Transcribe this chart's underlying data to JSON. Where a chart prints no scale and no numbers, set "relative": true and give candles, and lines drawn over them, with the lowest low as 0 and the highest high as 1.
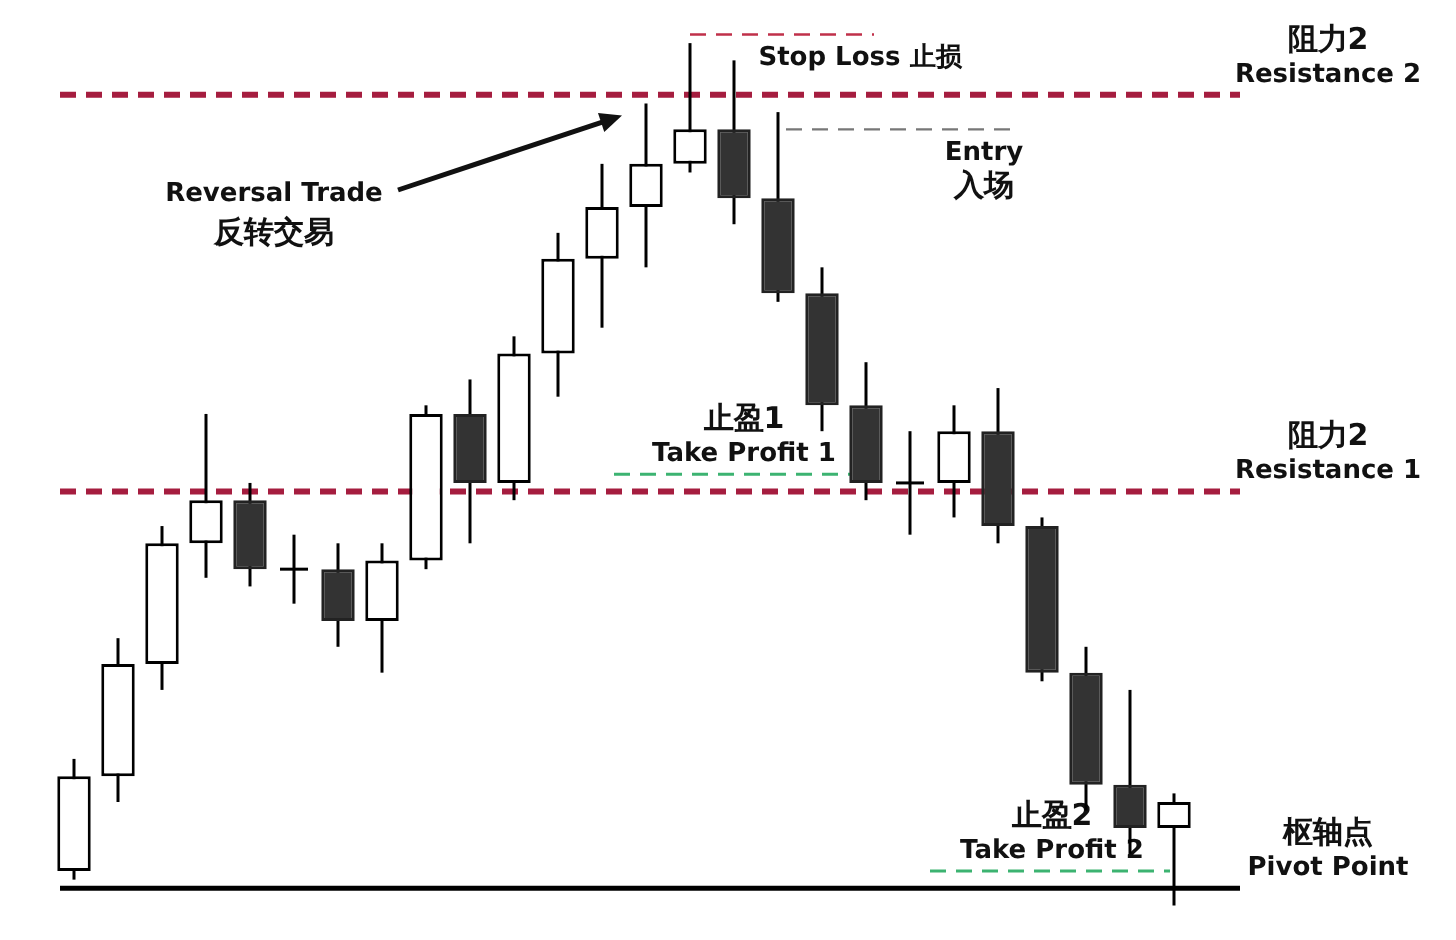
{
  "chart_data": {
    "type": "candlestick",
    "relative": true,
    "legend": false,
    "categories": [
      null,
      null,
      null,
      null,
      null,
      null,
      null,
      null,
      null,
      null,
      null,
      null,
      null,
      null,
      null,
      null,
      null,
      null,
      null,
      null,
      null,
      null,
      null,
      null,
      null,
      null
    ],
    "ohlc": [
      [
        0.04,
        0.17,
        0.03,
        0.15
      ],
      [
        0.15,
        0.31,
        0.12,
        0.28
      ],
      [
        0.28,
        0.44,
        0.25,
        0.42
      ],
      [
        0.42,
        0.57,
        0.38,
        0.47
      ],
      [
        0.47,
        0.49,
        0.37,
        0.39
      ],
      [
        0.39,
        0.43,
        0.35,
        0.39
      ],
      [
        0.39,
        0.42,
        0.3,
        0.33
      ],
      [
        0.33,
        0.42,
        0.27,
        0.4
      ],
      [
        0.4,
        0.58,
        0.39,
        0.57
      ],
      [
        0.57,
        0.61,
        0.42,
        0.49
      ],
      [
        0.49,
        0.66,
        0.47,
        0.64
      ],
      [
        0.64,
        0.78,
        0.59,
        0.75
      ],
      [
        0.75,
        0.86,
        0.67,
        0.81
      ],
      [
        0.81,
        0.93,
        0.74,
        0.86
      ],
      [
        0.86,
        1.0,
        0.85,
        0.9
      ],
      [
        0.9,
        0.98,
        0.79,
        0.82
      ],
      [
        0.82,
        0.92,
        0.7,
        0.71
      ],
      [
        0.71,
        0.74,
        0.55,
        0.58
      ],
      [
        0.58,
        0.63,
        0.47,
        0.49
      ],
      [
        0.49,
        0.55,
        0.43,
        0.49
      ],
      [
        0.49,
        0.58,
        0.45,
        0.55
      ],
      [
        0.55,
        0.6,
        0.42,
        0.44
      ],
      [
        0.44,
        0.45,
        0.26,
        0.27
      ],
      [
        0.27,
        0.3,
        0.11,
        0.14
      ],
      [
        0.14,
        0.25,
        0.06,
        0.09
      ],
      [
        0.09,
        0.13,
        0.0,
        0.12
      ]
    ],
    "ref_lines": [
      {
        "axis": "y",
        "value": 0.94,
        "label": "阻力2\nResistance 2",
        "color": "#a51d3f",
        "line_style": "dashed"
      },
      {
        "axis": "y",
        "value": 1.01,
        "label": "Stop Loss 止损",
        "color": "#c0304a",
        "line_style": "dashed"
      },
      {
        "axis": "y",
        "value": 0.9,
        "label": "Entry\n入场",
        "color": "#777777",
        "line_style": "dashed"
      },
      {
        "axis": "y",
        "value": 0.5,
        "label": "止盈1\nTake Profit 1",
        "color": "#3cb371",
        "line_style": "dashed"
      },
      {
        "axis": "y",
        "value": 0.48,
        "label": "阻力2\nResistance 1",
        "color": "#a51d3f",
        "line_style": "dashed"
      },
      {
        "axis": "y",
        "value": 0.04,
        "label": "止盈2\nTake Profit 2",
        "color": "#3cb371",
        "line_style": "dashed"
      },
      {
        "axis": "y",
        "value": 0.02,
        "label": "枢轴点\nPivot Point",
        "color": "#000000",
        "line_style": "solid"
      }
    ],
    "annotations": [
      "Reversal Trade\n反转交易"
    ]
  }
}
